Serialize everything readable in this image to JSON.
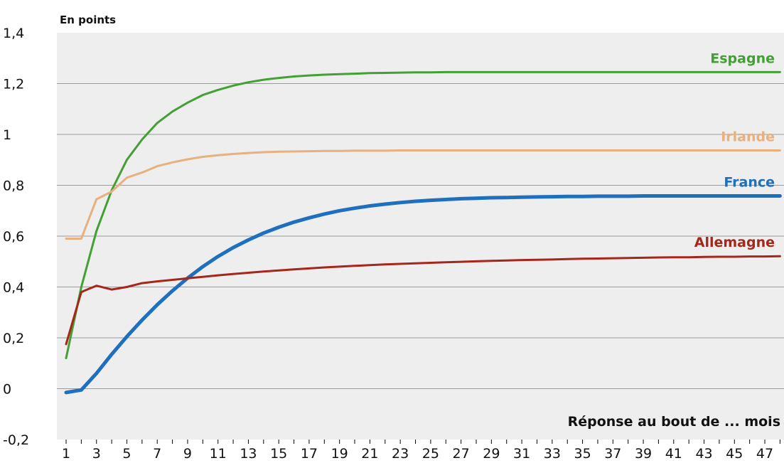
{
  "chart_data": {
    "type": "line",
    "unit_label": "En points",
    "xlabel": "Réponse au bout de ... mois",
    "ylabel": "",
    "x": [
      1,
      2,
      3,
      4,
      5,
      6,
      7,
      8,
      9,
      10,
      11,
      12,
      13,
      14,
      15,
      16,
      17,
      18,
      19,
      20,
      21,
      22,
      23,
      24,
      25,
      26,
      27,
      28,
      29,
      30,
      31,
      32,
      33,
      34,
      35,
      36,
      37,
      38,
      39,
      40,
      41,
      42,
      43,
      44,
      45,
      46,
      47,
      48
    ],
    "xtick_labels": [
      "1",
      "3",
      "5",
      "7",
      "9",
      "11",
      "13",
      "15",
      "17",
      "19",
      "21",
      "23",
      "25",
      "27",
      "29",
      "31",
      "33",
      "35",
      "37",
      "39",
      "41",
      "43",
      "45",
      "47"
    ],
    "ylim": [
      -0.2,
      1.4
    ],
    "ytick_values": [
      -0.2,
      0,
      0.2,
      0.4,
      0.6,
      0.8,
      1,
      1.2,
      1.4
    ],
    "ytick_labels": [
      "-0,2",
      "0",
      "0,2",
      "0,4",
      "0,6",
      "0,8",
      "1",
      "1,2",
      "1,4"
    ],
    "grid": true,
    "legend": "labels at right end of lines",
    "series": [
      {
        "name": "Espagne",
        "color": "#43a034",
        "values": [
          0.12,
          0.4,
          0.62,
          0.78,
          0.9,
          0.98,
          1.045,
          1.09,
          1.125,
          1.155,
          1.175,
          1.192,
          1.205,
          1.215,
          1.222,
          1.228,
          1.232,
          1.235,
          1.237,
          1.239,
          1.241,
          1.242,
          1.243,
          1.244,
          1.244,
          1.245,
          1.245,
          1.245,
          1.245,
          1.245,
          1.245,
          1.245,
          1.245,
          1.245,
          1.245,
          1.245,
          1.245,
          1.245,
          1.245,
          1.245,
          1.245,
          1.245,
          1.245,
          1.245,
          1.245,
          1.245,
          1.245,
          1.245
        ]
      },
      {
        "name": "Irlande",
        "color": "#e8b07e",
        "values": [
          0.59,
          0.59,
          0.745,
          0.775,
          0.83,
          0.85,
          0.875,
          0.89,
          0.902,
          0.912,
          0.918,
          0.923,
          0.927,
          0.93,
          0.932,
          0.933,
          0.934,
          0.935,
          0.935,
          0.936,
          0.936,
          0.936,
          0.937,
          0.937,
          0.937,
          0.937,
          0.937,
          0.937,
          0.937,
          0.937,
          0.937,
          0.937,
          0.937,
          0.937,
          0.937,
          0.937,
          0.937,
          0.937,
          0.937,
          0.937,
          0.937,
          0.937,
          0.937,
          0.937,
          0.937,
          0.937,
          0.937,
          0.937
        ]
      },
      {
        "name": "France",
        "color": "#1f6fbf",
        "values": [
          -0.015,
          -0.005,
          0.06,
          0.135,
          0.205,
          0.27,
          0.33,
          0.385,
          0.435,
          0.48,
          0.52,
          0.555,
          0.585,
          0.612,
          0.635,
          0.655,
          0.672,
          0.687,
          0.7,
          0.71,
          0.719,
          0.726,
          0.732,
          0.737,
          0.741,
          0.744,
          0.747,
          0.749,
          0.751,
          0.752,
          0.753,
          0.754,
          0.755,
          0.756,
          0.756,
          0.757,
          0.757,
          0.757,
          0.758,
          0.758,
          0.758,
          0.758,
          0.758,
          0.758,
          0.758,
          0.758,
          0.758,
          0.758
        ]
      },
      {
        "name": "Allemagne",
        "color": "#a5271c",
        "values": [
          0.175,
          0.38,
          0.405,
          0.39,
          0.4,
          0.415,
          0.422,
          0.428,
          0.434,
          0.44,
          0.446,
          0.451,
          0.456,
          0.461,
          0.465,
          0.469,
          0.473,
          0.477,
          0.48,
          0.483,
          0.486,
          0.489,
          0.491,
          0.493,
          0.495,
          0.497,
          0.499,
          0.501,
          0.503,
          0.504,
          0.506,
          0.507,
          0.508,
          0.51,
          0.511,
          0.512,
          0.513,
          0.514,
          0.515,
          0.516,
          0.517,
          0.517,
          0.518,
          0.519,
          0.519,
          0.52,
          0.52,
          0.521
        ]
      }
    ]
  }
}
